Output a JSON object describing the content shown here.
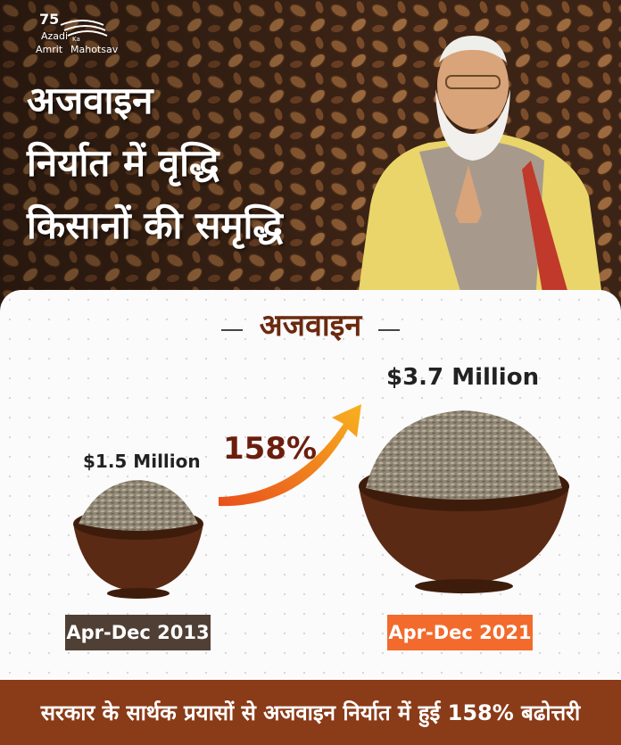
{
  "logo": {
    "number": "75",
    "line1": "Azadi",
    "small": "Ka",
    "line2": "Amrit",
    "line3": "Mahotsav"
  },
  "header": {
    "lines": [
      "अजवाइन",
      "निर्यात में वृद्धि",
      "किसानों की समृद्धि"
    ]
  },
  "section": {
    "title": "अजवाइन",
    "before": {
      "amount": "$1.5  Million",
      "period": "Apr-Dec 2013"
    },
    "after": {
      "amount": "$3.7 Million",
      "period": "Apr-Dec 2021"
    },
    "growth": "158%"
  },
  "footer": {
    "text": "सरकार के सार्थक प्रयासों से अजवाइन निर्यात में हुई 158% बढोत्तरी"
  }
}
